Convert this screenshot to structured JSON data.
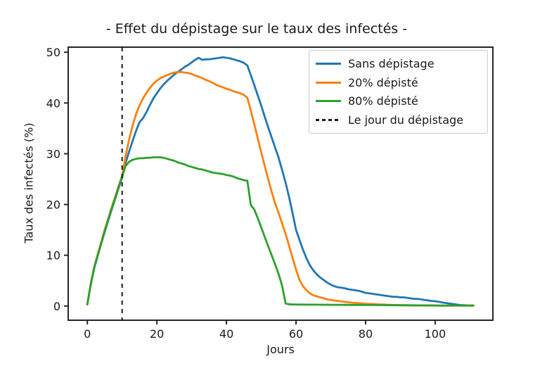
{
  "chart_data": {
    "type": "line",
    "title": "- Effet du dépistage sur le taux des infectés -",
    "xlabel": "Jours",
    "ylabel": "Taux des infectés (%)",
    "x_ticks": [
      0,
      20,
      40,
      60,
      80,
      100
    ],
    "y_ticks": [
      0,
      10,
      20,
      30,
      40,
      50
    ],
    "xlim": [
      -5.5,
      116.6
    ],
    "ylim": [
      -2.8,
      51.0
    ],
    "grid": false,
    "legend_position": "upper right",
    "x_start": 0,
    "x_step": 1,
    "vline": {
      "x": 10,
      "style": "dashed",
      "color": "#1a1a1a",
      "label": "Le jour du dépistage"
    },
    "series": [
      {
        "name": "Sans dépistage",
        "color": "#1f77b4",
        "values": [
          0.3,
          4.3,
          7.5,
          9.9,
          12.3,
          14.6,
          16.8,
          19.0,
          21.1,
          23.2,
          25.3,
          28.2,
          30.4,
          32.5,
          34.5,
          36.2,
          37.0,
          38.2,
          39.6,
          40.9,
          41.9,
          42.9,
          43.7,
          44.4,
          45.0,
          45.6,
          46.1,
          46.6,
          47.1,
          47.5,
          48.0,
          48.5,
          48.9,
          48.5,
          48.6,
          48.6,
          48.7,
          48.8,
          48.9,
          49.0,
          48.9,
          48.8,
          48.6,
          48.4,
          48.2,
          47.9,
          47.4,
          45.5,
          43.5,
          41.5,
          39.5,
          37.3,
          35.2,
          33.2,
          31.2,
          29.2,
          26.8,
          24.3,
          21.5,
          18.3,
          15.0,
          13.0,
          11.1,
          9.4,
          8.0,
          7.0,
          6.2,
          5.6,
          5.1,
          4.6,
          4.2,
          3.9,
          3.7,
          3.6,
          3.5,
          3.3,
          3.2,
          3.1,
          3.0,
          2.8,
          2.6,
          2.5,
          2.4,
          2.3,
          2.2,
          2.1,
          2.0,
          1.9,
          1.8,
          1.8,
          1.7,
          1.7,
          1.6,
          1.5,
          1.4,
          1.4,
          1.3,
          1.2,
          1.1,
          1.0,
          0.95,
          0.85,
          0.7,
          0.6,
          0.5,
          0.4,
          0.3,
          0.2,
          0.15,
          0.12,
          0.1,
          0.1
        ]
      },
      {
        "name": "20% dépisté",
        "color": "#ff7f0e",
        "values": [
          0.3,
          4.5,
          7.8,
          10.2,
          12.6,
          15.0,
          17.2,
          19.4,
          21.5,
          23.6,
          25.7,
          29.5,
          32.8,
          35.5,
          37.8,
          39.5,
          40.9,
          42.0,
          43.0,
          43.8,
          44.4,
          44.9,
          45.2,
          45.5,
          45.8,
          46.0,
          46.1,
          46.1,
          46.0,
          45.9,
          45.7,
          45.4,
          45.2,
          44.9,
          44.6,
          44.3,
          44.0,
          43.6,
          43.3,
          43.1,
          42.8,
          42.6,
          42.3,
          42.1,
          41.9,
          41.6,
          41.0,
          38.5,
          35.8,
          33.0,
          30.3,
          27.6,
          25.0,
          22.5,
          20.2,
          18.3,
          16.3,
          14.2,
          11.9,
          9.5,
          7.2,
          5.1,
          3.9,
          3.1,
          2.5,
          2.1,
          1.9,
          1.7,
          1.5,
          1.3,
          1.2,
          1.1,
          1.0,
          0.9,
          0.8,
          0.75,
          0.65,
          0.6,
          0.55,
          0.5,
          0.45,
          0.4,
          0.4,
          0.35,
          0.3,
          0.3,
          0.25,
          0.22,
          0.2,
          0.18,
          0.15,
          0.13,
          0.12,
          0.1,
          0.1,
          0.1,
          0.1,
          0.09,
          0.09,
          0.08,
          0.08,
          0.07,
          0.07,
          0.06,
          0.06,
          0.06,
          0.05,
          0.05,
          0.05,
          0.05,
          0.05,
          0.05
        ]
      },
      {
        "name": "80% dépisté",
        "color": "#2ca02c",
        "values": [
          0.3,
          4.4,
          7.6,
          10.0,
          12.4,
          14.8,
          17.0,
          19.2,
          21.3,
          23.4,
          25.5,
          27.6,
          28.4,
          28.8,
          29.0,
          29.1,
          29.1,
          29.2,
          29.2,
          29.3,
          29.3,
          29.3,
          29.2,
          29.0,
          28.8,
          28.6,
          28.3,
          28.1,
          27.9,
          27.6,
          27.4,
          27.2,
          27.0,
          26.9,
          26.7,
          26.5,
          26.3,
          26.2,
          26.1,
          26.0,
          25.8,
          25.7,
          25.5,
          25.2,
          25.0,
          24.8,
          24.7,
          19.9,
          19.0,
          17.3,
          15.5,
          13.6,
          11.8,
          10.0,
          8.2,
          6.3,
          4.0,
          0.5,
          0.35,
          0.3,
          0.3,
          0.28,
          0.28,
          0.27,
          0.27,
          0.26,
          0.26,
          0.25,
          0.25,
          0.25,
          0.24,
          0.24,
          0.23,
          0.23,
          0.22,
          0.22,
          0.21,
          0.21,
          0.2,
          0.2,
          0.2,
          0.2,
          0.19,
          0.19,
          0.18,
          0.18,
          0.17,
          0.17,
          0.16,
          0.16,
          0.15,
          0.15,
          0.15,
          0.14,
          0.14,
          0.13,
          0.13,
          0.12,
          0.12,
          0.11,
          0.11,
          0.1,
          0.1,
          0.1,
          0.1,
          0.1,
          0.1,
          0.1,
          0.1,
          0.1,
          0.1,
          0.1
        ]
      }
    ],
    "legend": {
      "items": [
        {
          "label": "Sans dépistage",
          "color": "#1f77b4",
          "dashed": false
        },
        {
          "label": "20% dépisté",
          "color": "#ff7f0e",
          "dashed": false
        },
        {
          "label": "80% dépisté",
          "color": "#2ca02c",
          "dashed": false
        },
        {
          "label": "Le jour du dépistage",
          "color": "#1a1a1a",
          "dashed": true
        }
      ]
    },
    "style": {
      "spine_color": "#262626",
      "text_color": "#1a1a1a",
      "background": "#ffffff"
    }
  }
}
